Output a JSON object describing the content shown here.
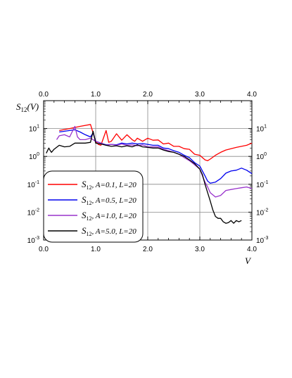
{
  "chart_data": {
    "type": "line",
    "ylabel": "S12(V)",
    "ylabel_parts": {
      "main": "S",
      "sub": "12",
      "rest": "(V)"
    },
    "xlabel": "V",
    "xlim": [
      0.0,
      4.0
    ],
    "ylim": [
      0.001,
      100
    ],
    "y_scale": "log",
    "grid": true,
    "x_ticks": [
      "0.0",
      "1.0",
      "2.0",
      "3.0",
      "4.0"
    ],
    "y_ticks": [
      {
        "value": 10,
        "base": "10",
        "exp": "1"
      },
      {
        "value": 1,
        "base": "10",
        "exp": "0"
      },
      {
        "value": 0.1,
        "base": "10",
        "exp": "-1"
      },
      {
        "value": 0.01,
        "base": "10",
        "exp": "-2"
      },
      {
        "value": 0.001,
        "base": "10",
        "exp": "-3"
      }
    ],
    "legend_position": "lower-left",
    "series": [
      {
        "name": "S12, A=0.1, L=20",
        "name_parts": {
          "main": "S",
          "sub": "12",
          "rest": ", A=0.1, L=20"
        },
        "color": "#ff0000",
        "x": [
          0.3,
          0.5,
          0.7,
          0.9,
          1.0,
          1.05,
          1.1,
          1.2,
          1.25,
          1.3,
          1.4,
          1.5,
          1.6,
          1.7,
          1.75,
          1.8,
          1.9,
          2.0,
          2.1,
          2.2,
          2.3,
          2.4,
          2.5,
          2.6,
          2.7,
          2.8,
          2.9,
          3.0,
          3.1,
          3.15,
          3.2,
          3.3,
          3.4,
          3.5,
          3.6,
          3.7,
          3.8,
          3.9,
          4.0
        ],
        "y": [
          8.5,
          10,
          12,
          14,
          3.5,
          2.7,
          2.5,
          8.5,
          3.2,
          3.5,
          6.5,
          3.8,
          6,
          4,
          3.5,
          4.5,
          3.5,
          4.5,
          3.8,
          3.9,
          2.8,
          3,
          2.3,
          2.3,
          1.9,
          1.8,
          1.2,
          1.1,
          0.75,
          0.7,
          0.8,
          1.1,
          1.4,
          1.7,
          1.9,
          2.1,
          2.3,
          2.5,
          3.0
        ]
      },
      {
        "name": "S12, A=0.5, L=20",
        "name_parts": {
          "main": "S",
          "sub": "12",
          "rest": ", A=0.5, L=20"
        },
        "color": "#0000ee",
        "x": [
          0.3,
          0.5,
          0.6,
          0.7,
          0.8,
          0.9,
          0.95,
          1.0,
          1.1,
          1.2,
          1.3,
          1.4,
          1.5,
          1.6,
          1.7,
          1.8,
          1.9,
          2.0,
          2.1,
          2.2,
          2.3,
          2.4,
          2.5,
          2.6,
          2.7,
          2.8,
          2.9,
          3.0,
          3.05,
          3.1,
          3.15,
          3.2,
          3.3,
          3.4,
          3.5,
          3.6,
          3.7,
          3.8,
          3.9,
          4.0
        ],
        "y": [
          7.5,
          8.5,
          9,
          7.5,
          6,
          5,
          7,
          3.5,
          3,
          2.6,
          2.7,
          2.6,
          3,
          2.8,
          3,
          2.8,
          2.9,
          2.7,
          2.5,
          2.5,
          2,
          1.9,
          1.6,
          1.4,
          1.1,
          0.9,
          0.6,
          0.45,
          0.3,
          0.2,
          0.13,
          0.11,
          0.12,
          0.16,
          0.25,
          0.3,
          0.32,
          0.38,
          0.32,
          0.24
        ]
      },
      {
        "name": "S12, A=1.0, L=20",
        "name_parts": {
          "main": "S",
          "sub": "12",
          "rest": ", A=1.0, L=20"
        },
        "color": "#9933cc",
        "x": [
          0.25,
          0.3,
          0.4,
          0.5,
          0.6,
          0.65,
          0.7,
          0.8,
          0.9,
          1.0,
          1.1,
          1.2,
          1.3,
          1.4,
          1.5,
          1.6,
          1.7,
          1.8,
          1.9,
          2.0,
          2.1,
          2.2,
          2.3,
          2.4,
          2.5,
          2.6,
          2.7,
          2.8,
          2.9,
          3.0,
          3.05,
          3.1,
          3.15,
          3.2,
          3.3,
          3.4,
          3.5,
          3.6,
          3.7,
          3.8,
          3.9,
          4.0
        ],
        "y": [
          4,
          5.5,
          6,
          5,
          12,
          5,
          4,
          4,
          4.5,
          3.5,
          3,
          2.5,
          2.7,
          2.5,
          2.8,
          2.5,
          2.6,
          2.4,
          2.6,
          2.2,
          2.2,
          2.2,
          1.8,
          1.6,
          1.4,
          1.2,
          0.9,
          0.7,
          0.5,
          0.35,
          0.2,
          0.12,
          0.08,
          0.05,
          0.035,
          0.04,
          0.06,
          0.065,
          0.07,
          0.075,
          0.08,
          0.07
        ]
      },
      {
        "name": "S12, A=5.0, L=20",
        "name_parts": {
          "main": "S",
          "sub": "12",
          "rest": ", A=5.0, L=20"
        },
        "color": "#000000",
        "x": [
          0.05,
          0.1,
          0.12,
          0.15,
          0.2,
          0.3,
          0.4,
          0.5,
          0.6,
          0.7,
          0.8,
          0.9,
          0.95,
          1.0,
          1.1,
          1.2,
          1.3,
          1.4,
          1.5,
          1.6,
          1.7,
          1.8,
          1.9,
          2.0,
          2.1,
          2.2,
          2.3,
          2.4,
          2.5,
          2.6,
          2.7,
          2.8,
          2.9,
          3.0,
          3.05,
          3.1,
          3.15,
          3.2,
          3.25,
          3.3,
          3.35,
          3.4,
          3.45,
          3.5,
          3.55,
          3.6,
          3.65,
          3.7,
          3.75,
          3.8
        ],
        "y": [
          1.3,
          2,
          1.7,
          1.4,
          1.8,
          2.5,
          2.2,
          2.3,
          3,
          3,
          3,
          3.2,
          8,
          3,
          2.8,
          2.5,
          2.3,
          2.4,
          2.2,
          2.4,
          2.2,
          2.6,
          2.2,
          2.1,
          2,
          2,
          1.7,
          1.5,
          1.4,
          1.2,
          1,
          0.75,
          0.55,
          0.35,
          0.22,
          0.1,
          0.05,
          0.025,
          0.012,
          0.007,
          0.006,
          0.006,
          0.0045,
          0.004,
          0.0042,
          0.005,
          0.004,
          0.005,
          0.0045,
          0.005
        ]
      }
    ]
  }
}
